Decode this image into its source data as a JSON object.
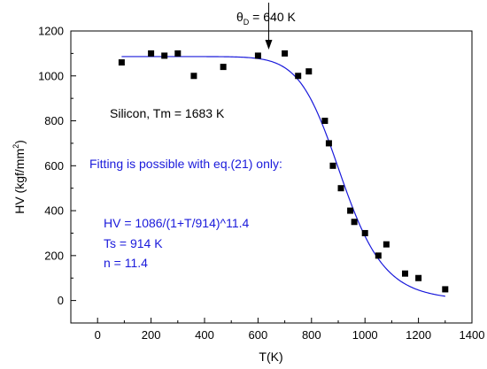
{
  "chart_data": {
    "type": "scatter",
    "xlabel": "T(K)",
    "ylabel_main": "HV (kgf/mm",
    "ylabel_sup": "2",
    "ylabel_end": ")",
    "xlim": [
      -100,
      1400
    ],
    "ylim": [
      -100,
      1200
    ],
    "xticks": [
      0,
      200,
      400,
      600,
      800,
      1000,
      1200,
      1400
    ],
    "yticks": [
      0,
      200,
      400,
      600,
      800,
      1000,
      1200
    ],
    "grid": false,
    "series": [
      {
        "marker": "square",
        "color": "#000000",
        "points": [
          [
            90,
            1060
          ],
          [
            200,
            1100
          ],
          [
            250,
            1090
          ],
          [
            300,
            1100
          ],
          [
            360,
            1000
          ],
          [
            470,
            1040
          ],
          [
            600,
            1090
          ],
          [
            700,
            1100
          ],
          [
            750,
            1000
          ],
          [
            790,
            1020
          ],
          [
            850,
            800
          ],
          [
            865,
            700
          ],
          [
            880,
            600
          ],
          [
            910,
            500
          ],
          [
            945,
            400
          ],
          [
            960,
            350
          ],
          [
            1000,
            300
          ],
          [
            1050,
            200
          ],
          [
            1080,
            250
          ],
          [
            1150,
            120
          ],
          [
            1200,
            100
          ],
          [
            1300,
            50
          ]
        ]
      },
      {
        "type": "line",
        "color": "#1a1adb",
        "function": "HV = 1086/(1+T/914)^11.4",
        "params": {
          "A": 1086,
          "Ts": 914,
          "n": 11.4
        },
        "x_range": [
          90,
          1300
        ]
      }
    ],
    "annotations": {
      "theta_prefix": "θ",
      "theta_sub": "D",
      "theta_value": " = 640 K",
      "theta_arrow_x": 640,
      "material": "Silicon,    Tm = 1683 K",
      "fitting_note": "Fitting is possible with eq.(21) only:",
      "equation": "HV = 1086/(1+T/914)^11.4",
      "ts": "Ts = 914 K",
      "n": "n = 11.4"
    }
  }
}
